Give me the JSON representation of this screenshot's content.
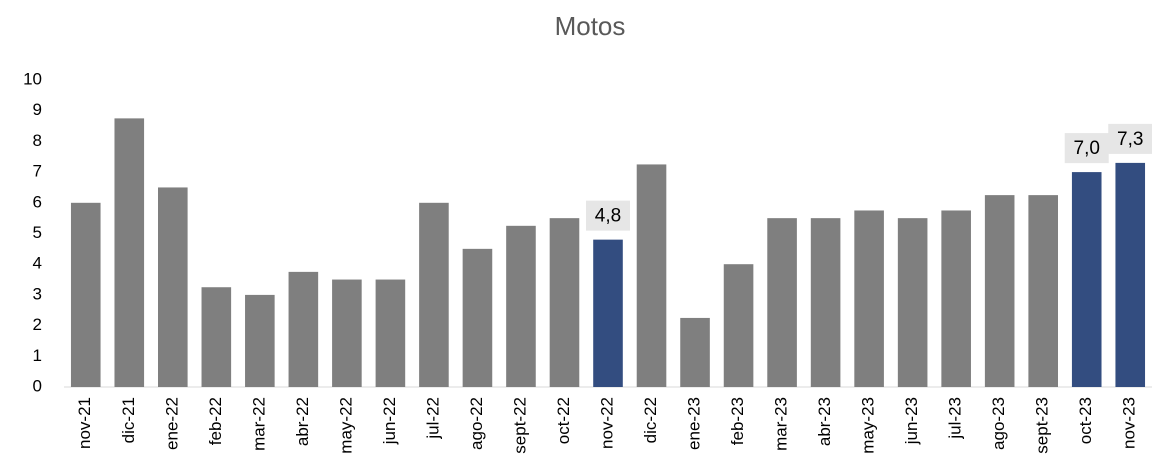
{
  "chart_data": {
    "type": "bar",
    "title": "Motos",
    "categories": [
      "nov-21",
      "dic-21",
      "ene-22",
      "feb-22",
      "mar-22",
      "abr-22",
      "may-22",
      "jun-22",
      "jul-22",
      "ago-22",
      "sept-22",
      "oct-22",
      "nov-22",
      "dic-22",
      "ene-23",
      "feb-23",
      "mar-23",
      "abr-23",
      "may-23",
      "jun-23",
      "jul-23",
      "ago-23",
      "sept-23",
      "oct-23",
      "nov-23"
    ],
    "values": [
      6.0,
      8.75,
      6.5,
      3.25,
      3.0,
      3.75,
      3.5,
      3.5,
      6.0,
      4.5,
      5.25,
      5.5,
      4.8,
      7.25,
      2.25,
      4.0,
      5.5,
      5.5,
      5.75,
      5.5,
      5.75,
      6.25,
      6.25,
      7.0,
      7.3
    ],
    "value_labels": [
      null,
      null,
      null,
      null,
      null,
      null,
      null,
      null,
      null,
      null,
      null,
      null,
      "4,8",
      null,
      null,
      null,
      null,
      null,
      null,
      null,
      null,
      null,
      null,
      "7,0",
      "7,3"
    ],
    "colors": [
      "#7f7f7f",
      "#7f7f7f",
      "#7f7f7f",
      "#7f7f7f",
      "#7f7f7f",
      "#7f7f7f",
      "#7f7f7f",
      "#7f7f7f",
      "#7f7f7f",
      "#7f7f7f",
      "#7f7f7f",
      "#7f7f7f",
      "#334d80",
      "#7f7f7f",
      "#7f7f7f",
      "#7f7f7f",
      "#7f7f7f",
      "#7f7f7f",
      "#7f7f7f",
      "#7f7f7f",
      "#7f7f7f",
      "#7f7f7f",
      "#7f7f7f",
      "#334d80",
      "#334d80"
    ],
    "ylim": [
      0,
      10
    ],
    "yticks": [
      0,
      1,
      2,
      3,
      4,
      5,
      6,
      7,
      8,
      9,
      10
    ],
    "grid": false
  }
}
